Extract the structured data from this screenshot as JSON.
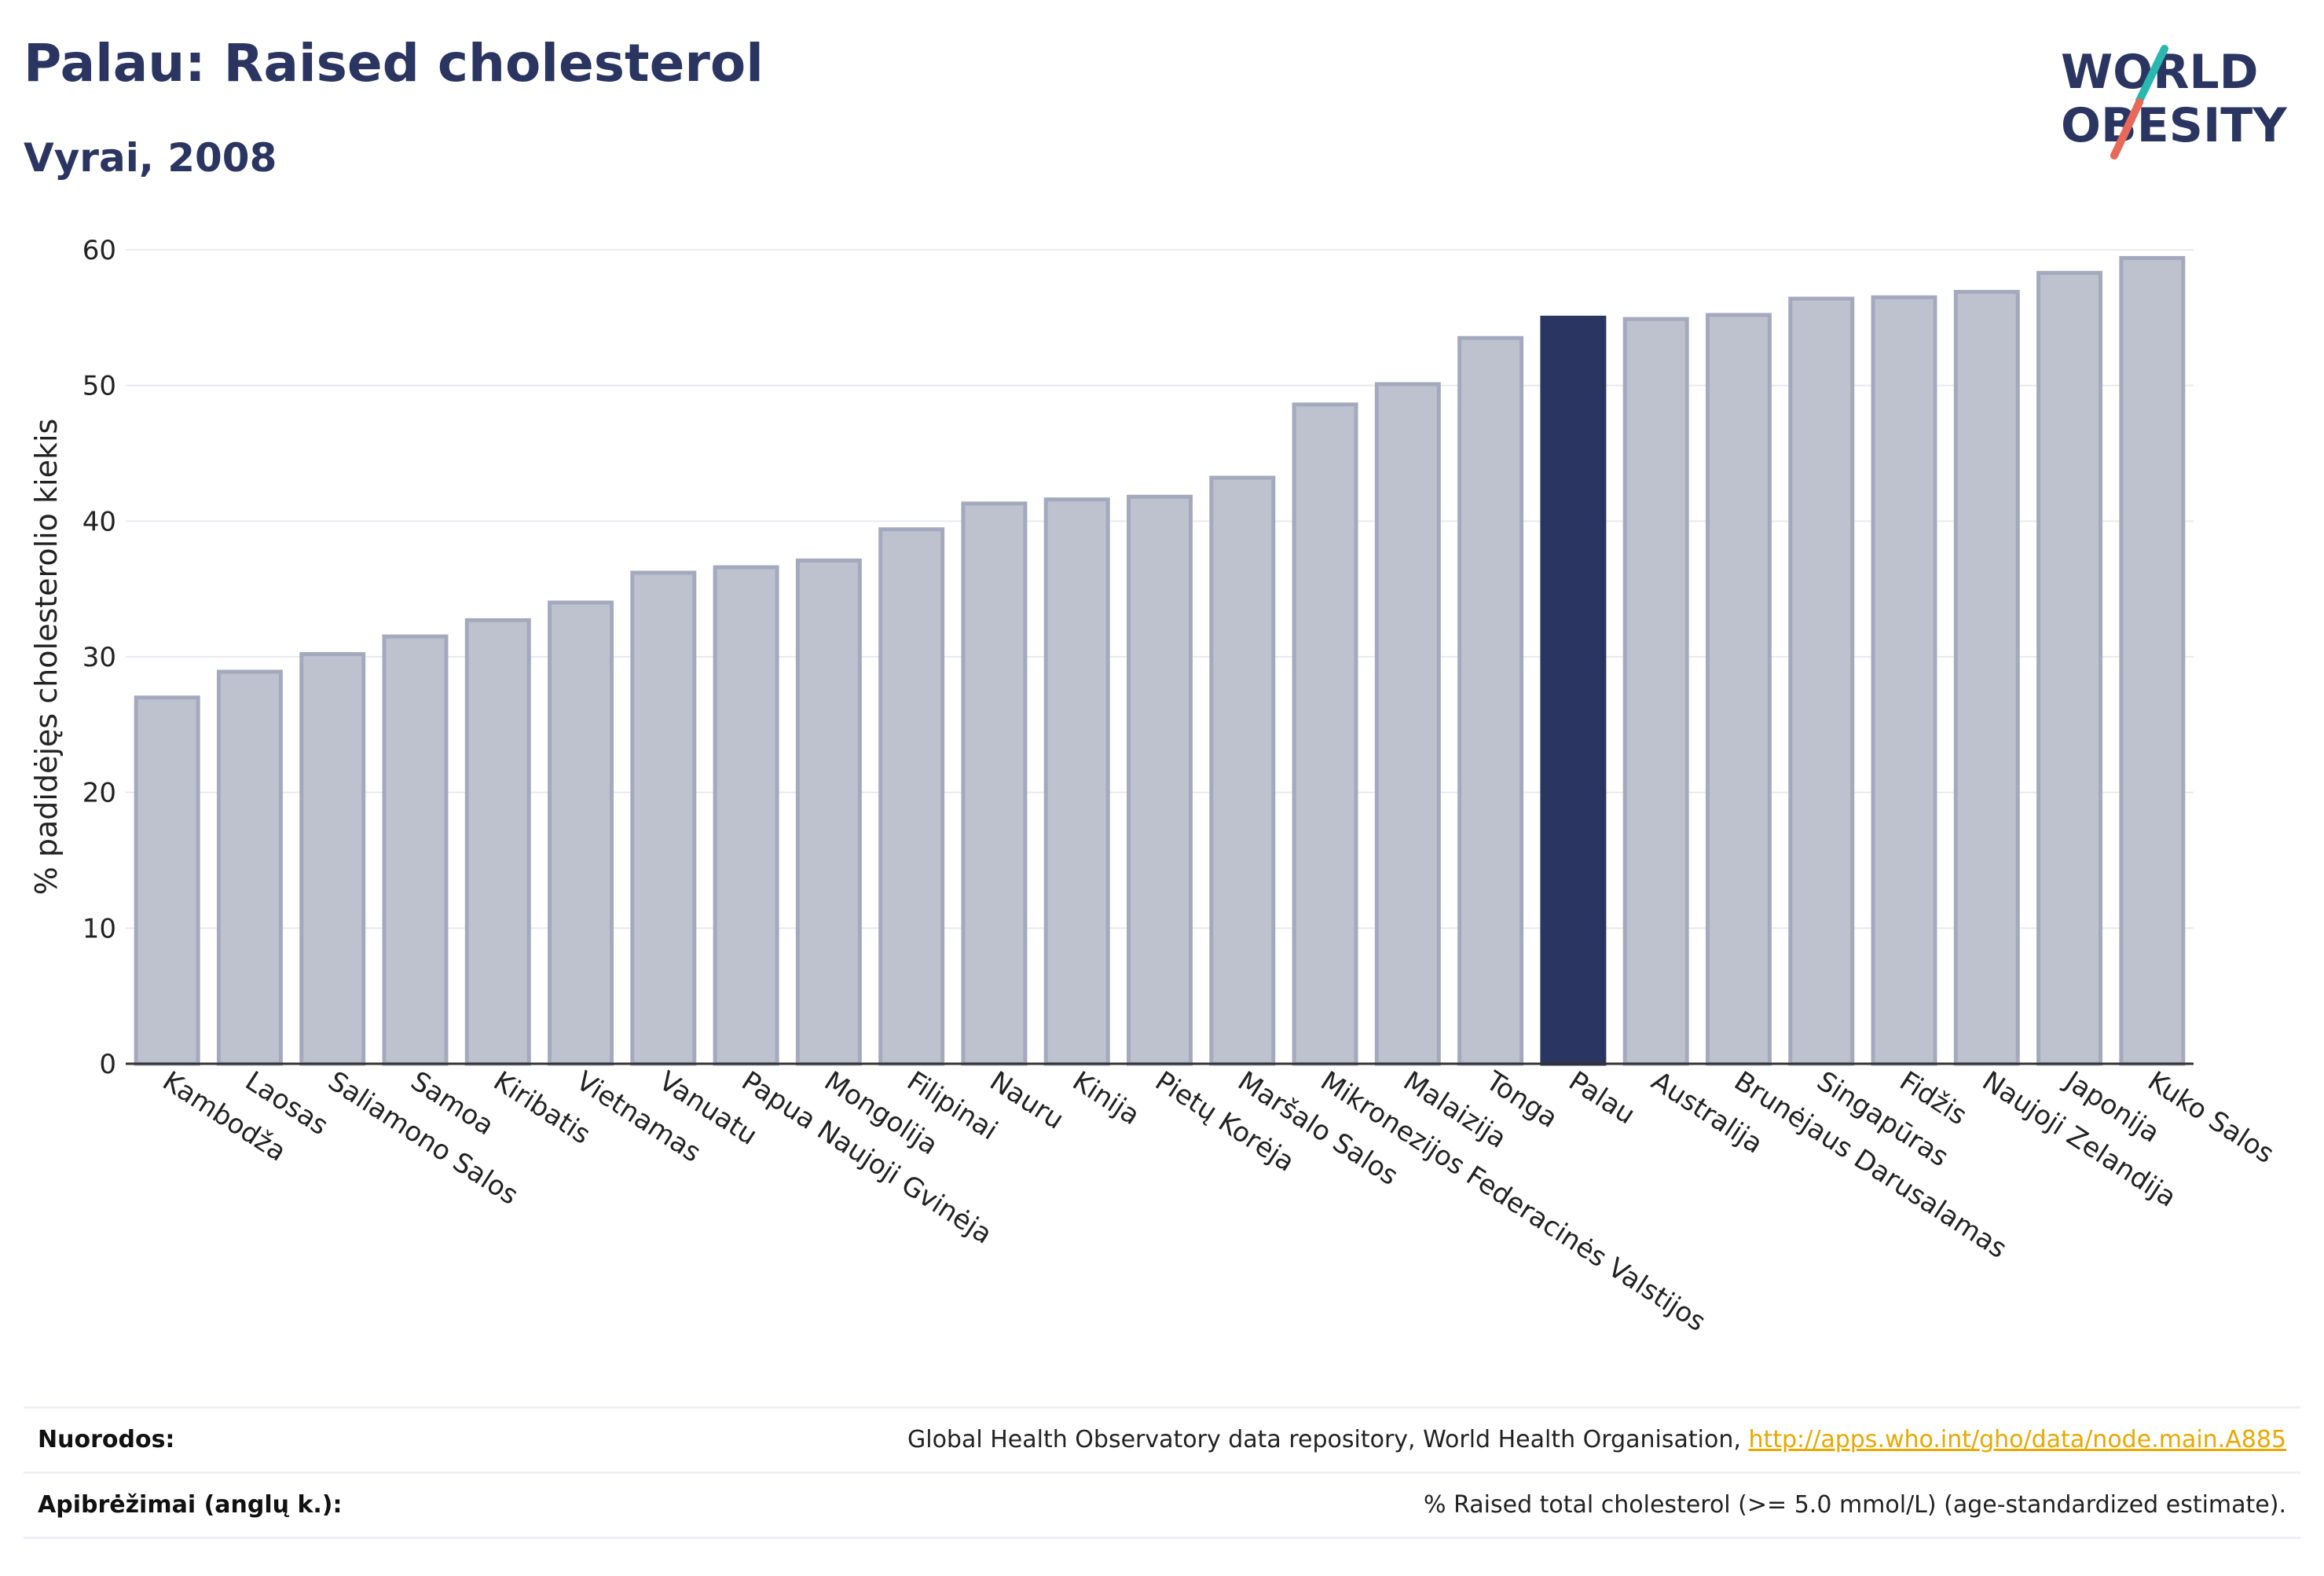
{
  "header": {
    "title": "Palau: Raised cholesterol",
    "subtitle": "Vyrai, 2008"
  },
  "logo": {
    "line1": "WORLD",
    "line2": "OBESITY",
    "colors": {
      "text": "#2b3561",
      "slash_teal": "#2ab7b0",
      "slash_coral": "#e8695a"
    }
  },
  "chart_data": {
    "type": "bar",
    "title": "Palau: Raised cholesterol",
    "subtitle": "Vyrai, 2008",
    "ylabel": "% padidėjęs cholesterolio kiekis",
    "xlabel": "",
    "ylim": [
      0,
      60
    ],
    "yticks": [
      0,
      10,
      20,
      30,
      40,
      50,
      60
    ],
    "grid": true,
    "highlight": "Palau",
    "colors": {
      "bar": "#bec2ce",
      "bar_border": "#a4a9bd",
      "highlight": "#2b3561"
    },
    "categories": [
      "Kambodža",
      "Laosas",
      "Saliamono Salos",
      "Samoa",
      "Kiribatis",
      "Vietnamas",
      "Vanuatu",
      "Papua Naujoji Gvinėja",
      "Mongolija",
      "Filipinai",
      "Nauru",
      "Kinija",
      "Pietų Korėja",
      "Maršalo Salos",
      "Mikronezijos Federacinės Valstijos",
      "Malaizija",
      "Tonga",
      "Palau",
      "Australija",
      "Brunėjaus Darusalamas",
      "Singapūras",
      "Fidžis",
      "Naujoji Zelandija",
      "Japonija",
      "Kuko Salos"
    ],
    "values": [
      27.0,
      28.9,
      30.2,
      31.5,
      32.7,
      34.0,
      36.2,
      36.6,
      37.1,
      39.4,
      41.3,
      41.6,
      41.8,
      43.2,
      48.6,
      50.1,
      53.5,
      55.0,
      54.9,
      55.2,
      56.4,
      56.5,
      56.9,
      58.3,
      59.4
    ]
  },
  "footer": {
    "references_label": "Nuorodos:",
    "references_text": "Global Health Observatory data repository, World Health Organisation,",
    "references_link": "http://apps.who.int/gho/data/node.main.A885",
    "definitions_label": "Apibrėžimai (anglų k.):",
    "definitions_text": "% Raised total cholesterol (>= 5.0 mmol/L) (age-standardized estimate)."
  }
}
